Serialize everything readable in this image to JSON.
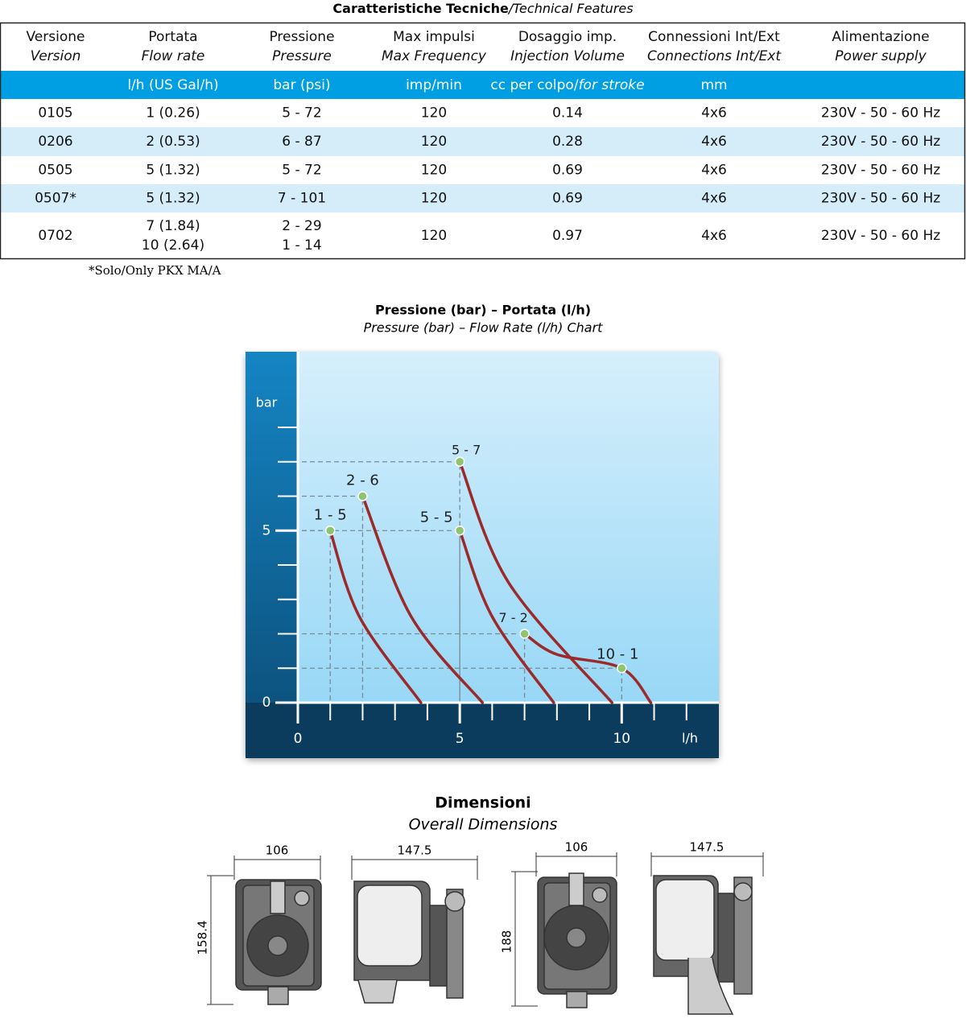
{
  "table": {
    "title": [
      "Caratteristiche Tecniche",
      "/Technical Features"
    ],
    "header": [
      [
        "Versione",
        "Version"
      ],
      [
        "Portata",
        "Flow rate"
      ],
      [
        "Pressione",
        "Pressure"
      ],
      [
        "Max impulsi",
        "Max Frequency"
      ],
      [
        "Dosaggio imp.",
        "Injection Volume"
      ],
      [
        "Connessioni Int/Ext",
        "Connections Int/Ext"
      ],
      [
        "Alimentazione",
        "Power supply"
      ]
    ],
    "units": [
      null,
      "l/h (US Gal/h)",
      "bar (psi)",
      "imp/min",
      [
        "cc per colpo/",
        "for stroke"
      ],
      "mm",
      null
    ],
    "rows": [
      [
        "0105",
        [
          "1 (0.26)"
        ],
        [
          "5 - 72"
        ],
        "120",
        "0.14",
        "4x6",
        "230V - 50 - 60 Hz"
      ],
      [
        "0206",
        [
          "2 (0.53)"
        ],
        [
          "6 - 87"
        ],
        "120",
        "0.28",
        "4x6",
        "230V - 50 - 60 Hz"
      ],
      [
        "0505",
        [
          "5 (1.32)"
        ],
        [
          "5 - 72"
        ],
        "120",
        "0.69",
        "4x6",
        "230V - 50 - 60 Hz"
      ],
      [
        "0507*",
        [
          "5 (1.32)"
        ],
        [
          "7 - 101"
        ],
        "120",
        "0.69",
        "4x6",
        "230V - 50 - 60 Hz"
      ],
      [
        "0702",
        [
          "7 (1.84)",
          "10 (2.64)"
        ],
        [
          "2 - 29",
          "1 - 14"
        ],
        "120",
        "0.97",
        "4x6",
        "230V - 50 - 60 Hz"
      ]
    ],
    "footnote": "*Solo/Only PKX MA/A"
  },
  "chart_data": {
    "type": "line",
    "title": "Pressione (bar) – Portata (l/h)",
    "subtitle": "Pressure (bar) – Flow Rate (l/h) Chart",
    "y_label": "bar",
    "x_label": "l/h",
    "xlim": [
      0,
      13
    ],
    "ylim": [
      0,
      10.2
    ],
    "xticks": [
      0,
      5,
      10
    ],
    "yticks": [
      0,
      5
    ],
    "x_minor_ticks": [
      1,
      2,
      3,
      4,
      5,
      6,
      7,
      8,
      9,
      10,
      11,
      12
    ],
    "y_minor_ticks": [
      1,
      2,
      3,
      4,
      5,
      6,
      7,
      8
    ],
    "curve_color": "#9b2a2a",
    "marker_color": "#8cc56e",
    "curves": [
      {
        "x": [
          1,
          1.9,
          3.8
        ],
        "y": [
          5,
          2.5,
          0
        ]
      },
      {
        "x": [
          2,
          3.5,
          5.7
        ],
        "y": [
          6,
          2.5,
          0
        ]
      },
      {
        "x": [
          5,
          6,
          7.9
        ],
        "y": [
          5,
          2.5,
          0
        ]
      },
      {
        "x": [
          5,
          6.5,
          9.7
        ],
        "y": [
          7,
          3.5,
          0
        ]
      },
      {
        "x": [
          7,
          8,
          10,
          10.9
        ],
        "y": [
          2,
          1.4,
          1,
          0
        ]
      }
    ],
    "markers": [
      {
        "x": 1,
        "y": 5,
        "label": "1 - 5"
      },
      {
        "x": 2,
        "y": 6,
        "label": "2 - 6"
      },
      {
        "x": 5,
        "y": 7,
        "label": "5 - 7"
      },
      {
        "x": 5,
        "y": 5,
        "label": "5 - 5"
      },
      {
        "x": 7,
        "y": 2,
        "label": "7 - 2"
      },
      {
        "x": 10,
        "y": 1,
        "label": "10 - 1"
      }
    ]
  },
  "dimensions": {
    "title": "Dimensioni",
    "subtitle": "Overall Dimensions",
    "labels": [
      "106",
      "158.4",
      "147.5",
      "106",
      "188",
      "147.5"
    ]
  }
}
